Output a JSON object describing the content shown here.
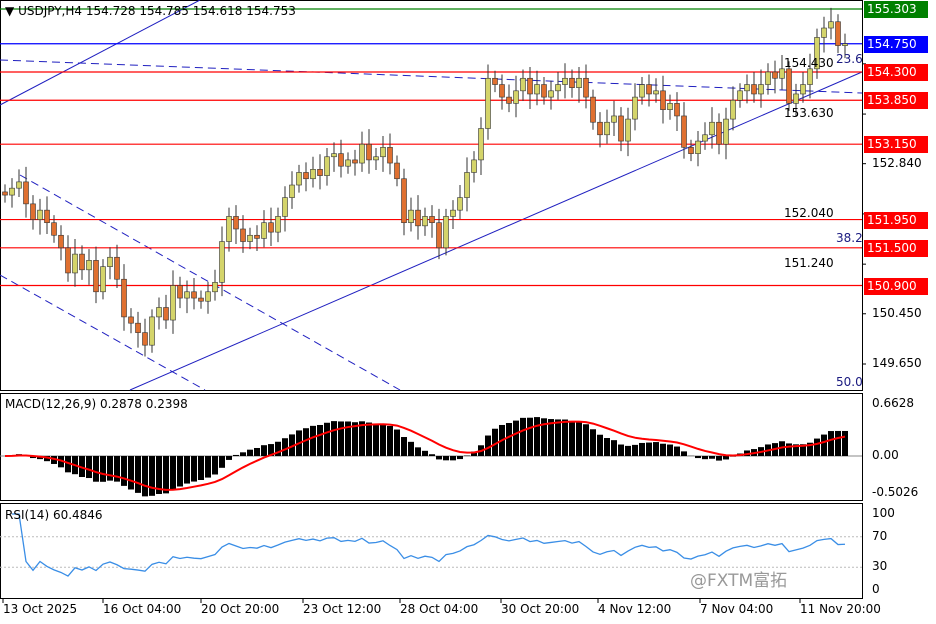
{
  "header": {
    "symbol": "USDJPY,H4",
    "open": "154.728",
    "high": "154.785",
    "low": "154.618",
    "close": "154.753"
  },
  "macd_label": "MACD(12,26,9) 0.2878 0.2398",
  "rsi_label": "RSI(14) 60.4846",
  "watermark": "@FXTM富拓",
  "colors": {
    "bull": "#d4d46a",
    "bear": "#e07030",
    "levels": "#ff0000",
    "current": "#0000ff",
    "high": "#008000",
    "macd_signal": "#ff0000",
    "rsi": "#3a8ee6"
  },
  "chart_data": {
    "type": "candlestick",
    "symbol": "USDJPY",
    "timeframe": "H4",
    "close": [
      152.34,
      152.45,
      152.55,
      152.2,
      151.95,
      152.1,
      151.9,
      151.7,
      151.5,
      151.1,
      151.4,
      151.15,
      151.3,
      150.8,
      151.2,
      151.35,
      151.0,
      150.4,
      150.3,
      150.15,
      149.95,
      150.4,
      150.55,
      150.35,
      150.9,
      150.7,
      150.8,
      150.7,
      150.65,
      150.8,
      150.95,
      151.6,
      152.0,
      151.8,
      151.6,
      151.7,
      151.65,
      151.9,
      151.75,
      152.0,
      152.3,
      152.5,
      152.7,
      152.6,
      152.75,
      152.65,
      152.95,
      153.0,
      152.8,
      152.9,
      152.85,
      153.15,
      152.9,
      152.95,
      153.1,
      152.85,
      152.6,
      151.9,
      152.1,
      151.85,
      152.0,
      151.9,
      151.5,
      152.0,
      152.1,
      152.3,
      152.7,
      152.9,
      153.4,
      154.2,
      154.1,
      153.9,
      153.8,
      154.0,
      154.2,
      153.95,
      154.1,
      153.9,
      154.0,
      154.1,
      154.2,
      154.05,
      154.2,
      153.9,
      153.5,
      153.3,
      153.5,
      153.6,
      153.2,
      153.55,
      153.9,
      154.1,
      153.95,
      154.0,
      153.7,
      153.8,
      153.6,
      153.1,
      153.0,
      153.2,
      153.3,
      153.5,
      153.15,
      153.55,
      153.85,
      154.0,
      154.1,
      153.95,
      154.1,
      154.3,
      154.2,
      154.35,
      153.8,
      153.95,
      154.1,
      154.35,
      154.85,
      155.0,
      155.1,
      154.72,
      154.75
    ],
    "x_ticks": [
      "13 Oct 2025",
      "16 Oct 04:00",
      "20 Oct 20:00",
      "23 Oct 12:00",
      "28 Oct 04:00",
      "30 Oct 20:00",
      "4 Nov 12:00",
      "7 Nov 04:00",
      "11 Nov 20:00"
    ],
    "y_ticks": [
      "154.430",
      "153.630",
      "152.840",
      "152.040",
      "151.240",
      "150.450",
      "149.650"
    ],
    "ylim": [
      149.3,
      155.35
    ],
    "levels": [
      {
        "price": "155.303",
        "color": "#008000"
      },
      {
        "price": "154.750",
        "color": "#0000ff"
      },
      {
        "price": "154.300",
        "color": "#ff0000"
      },
      {
        "price": "153.850",
        "color": "#ff0000"
      },
      {
        "price": "153.150",
        "color": "#ff0000"
      },
      {
        "price": "151.950",
        "color": "#ff0000"
      },
      {
        "price": "151.500",
        "color": "#ff0000"
      },
      {
        "price": "150.900",
        "color": "#ff0000"
      }
    ],
    "fib_levels": [
      "23.6",
      "38.2",
      "50.0"
    ],
    "macd": {
      "ticks": [
        "0.6628",
        "0.00",
        "-0.5026"
      ],
      "range": [
        -0.5026,
        0.6628
      ]
    },
    "rsi": {
      "ticks": [
        "100",
        "70",
        "30",
        "0"
      ],
      "levels": [
        70,
        30
      ]
    }
  }
}
